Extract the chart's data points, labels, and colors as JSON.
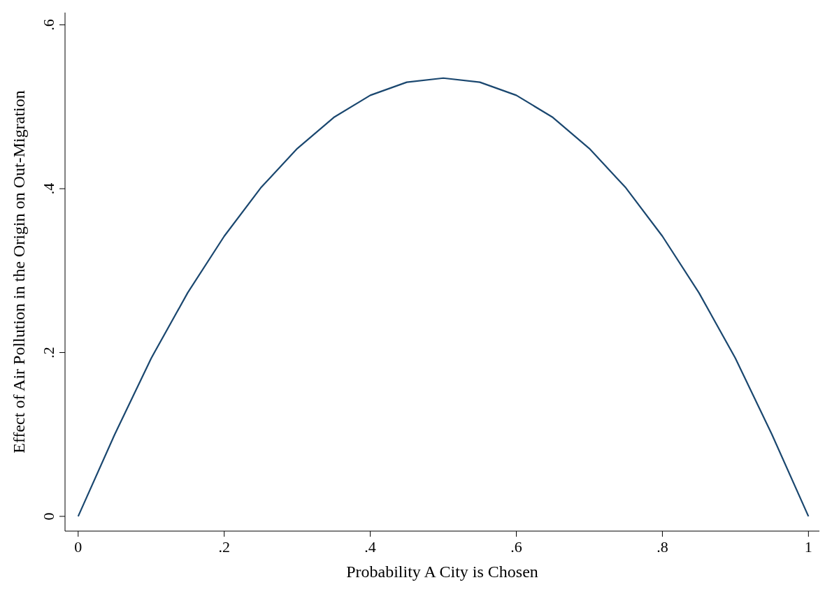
{
  "chart_data": {
    "type": "line",
    "xlabel": "Probability A City is Chosen",
    "ylabel": "Effect of Air Pollution in the Origin on Out-Migration",
    "x": [
      0,
      0.05,
      0.1,
      0.15,
      0.2,
      0.25,
      0.3,
      0.35,
      0.4,
      0.45,
      0.5,
      0.55,
      0.6,
      0.65,
      0.7,
      0.75,
      0.8,
      0.85,
      0.9,
      0.95,
      1
    ],
    "series": [
      {
        "color": "#1a476f",
        "values": [
          0,
          0.1,
          0.193,
          0.273,
          0.342,
          0.401,
          0.449,
          0.487,
          0.514,
          0.53,
          0.535,
          0.53,
          0.514,
          0.487,
          0.449,
          0.401,
          0.342,
          0.273,
          0.193,
          0.1,
          0
        ]
      }
    ],
    "xlim": [
      -0.018,
      1.015
    ],
    "ylim": [
      -0.018,
      0.615
    ],
    "xticks": [
      0,
      {
        "value": 0.2,
        "label": ".2"
      },
      {
        "value": 0.4,
        "label": ".4"
      },
      {
        "value": 0.6,
        "label": ".6"
      },
      {
        "value": 0.8,
        "label": ".8"
      },
      1
    ],
    "yticks": [
      0,
      {
        "value": 0.2,
        "label": ".2"
      },
      {
        "value": 0.4,
        "label": ".4"
      },
      {
        "value": 0.6,
        "label": ".6"
      }
    ],
    "grid": false,
    "marker": "none",
    "line_style": "solid"
  }
}
